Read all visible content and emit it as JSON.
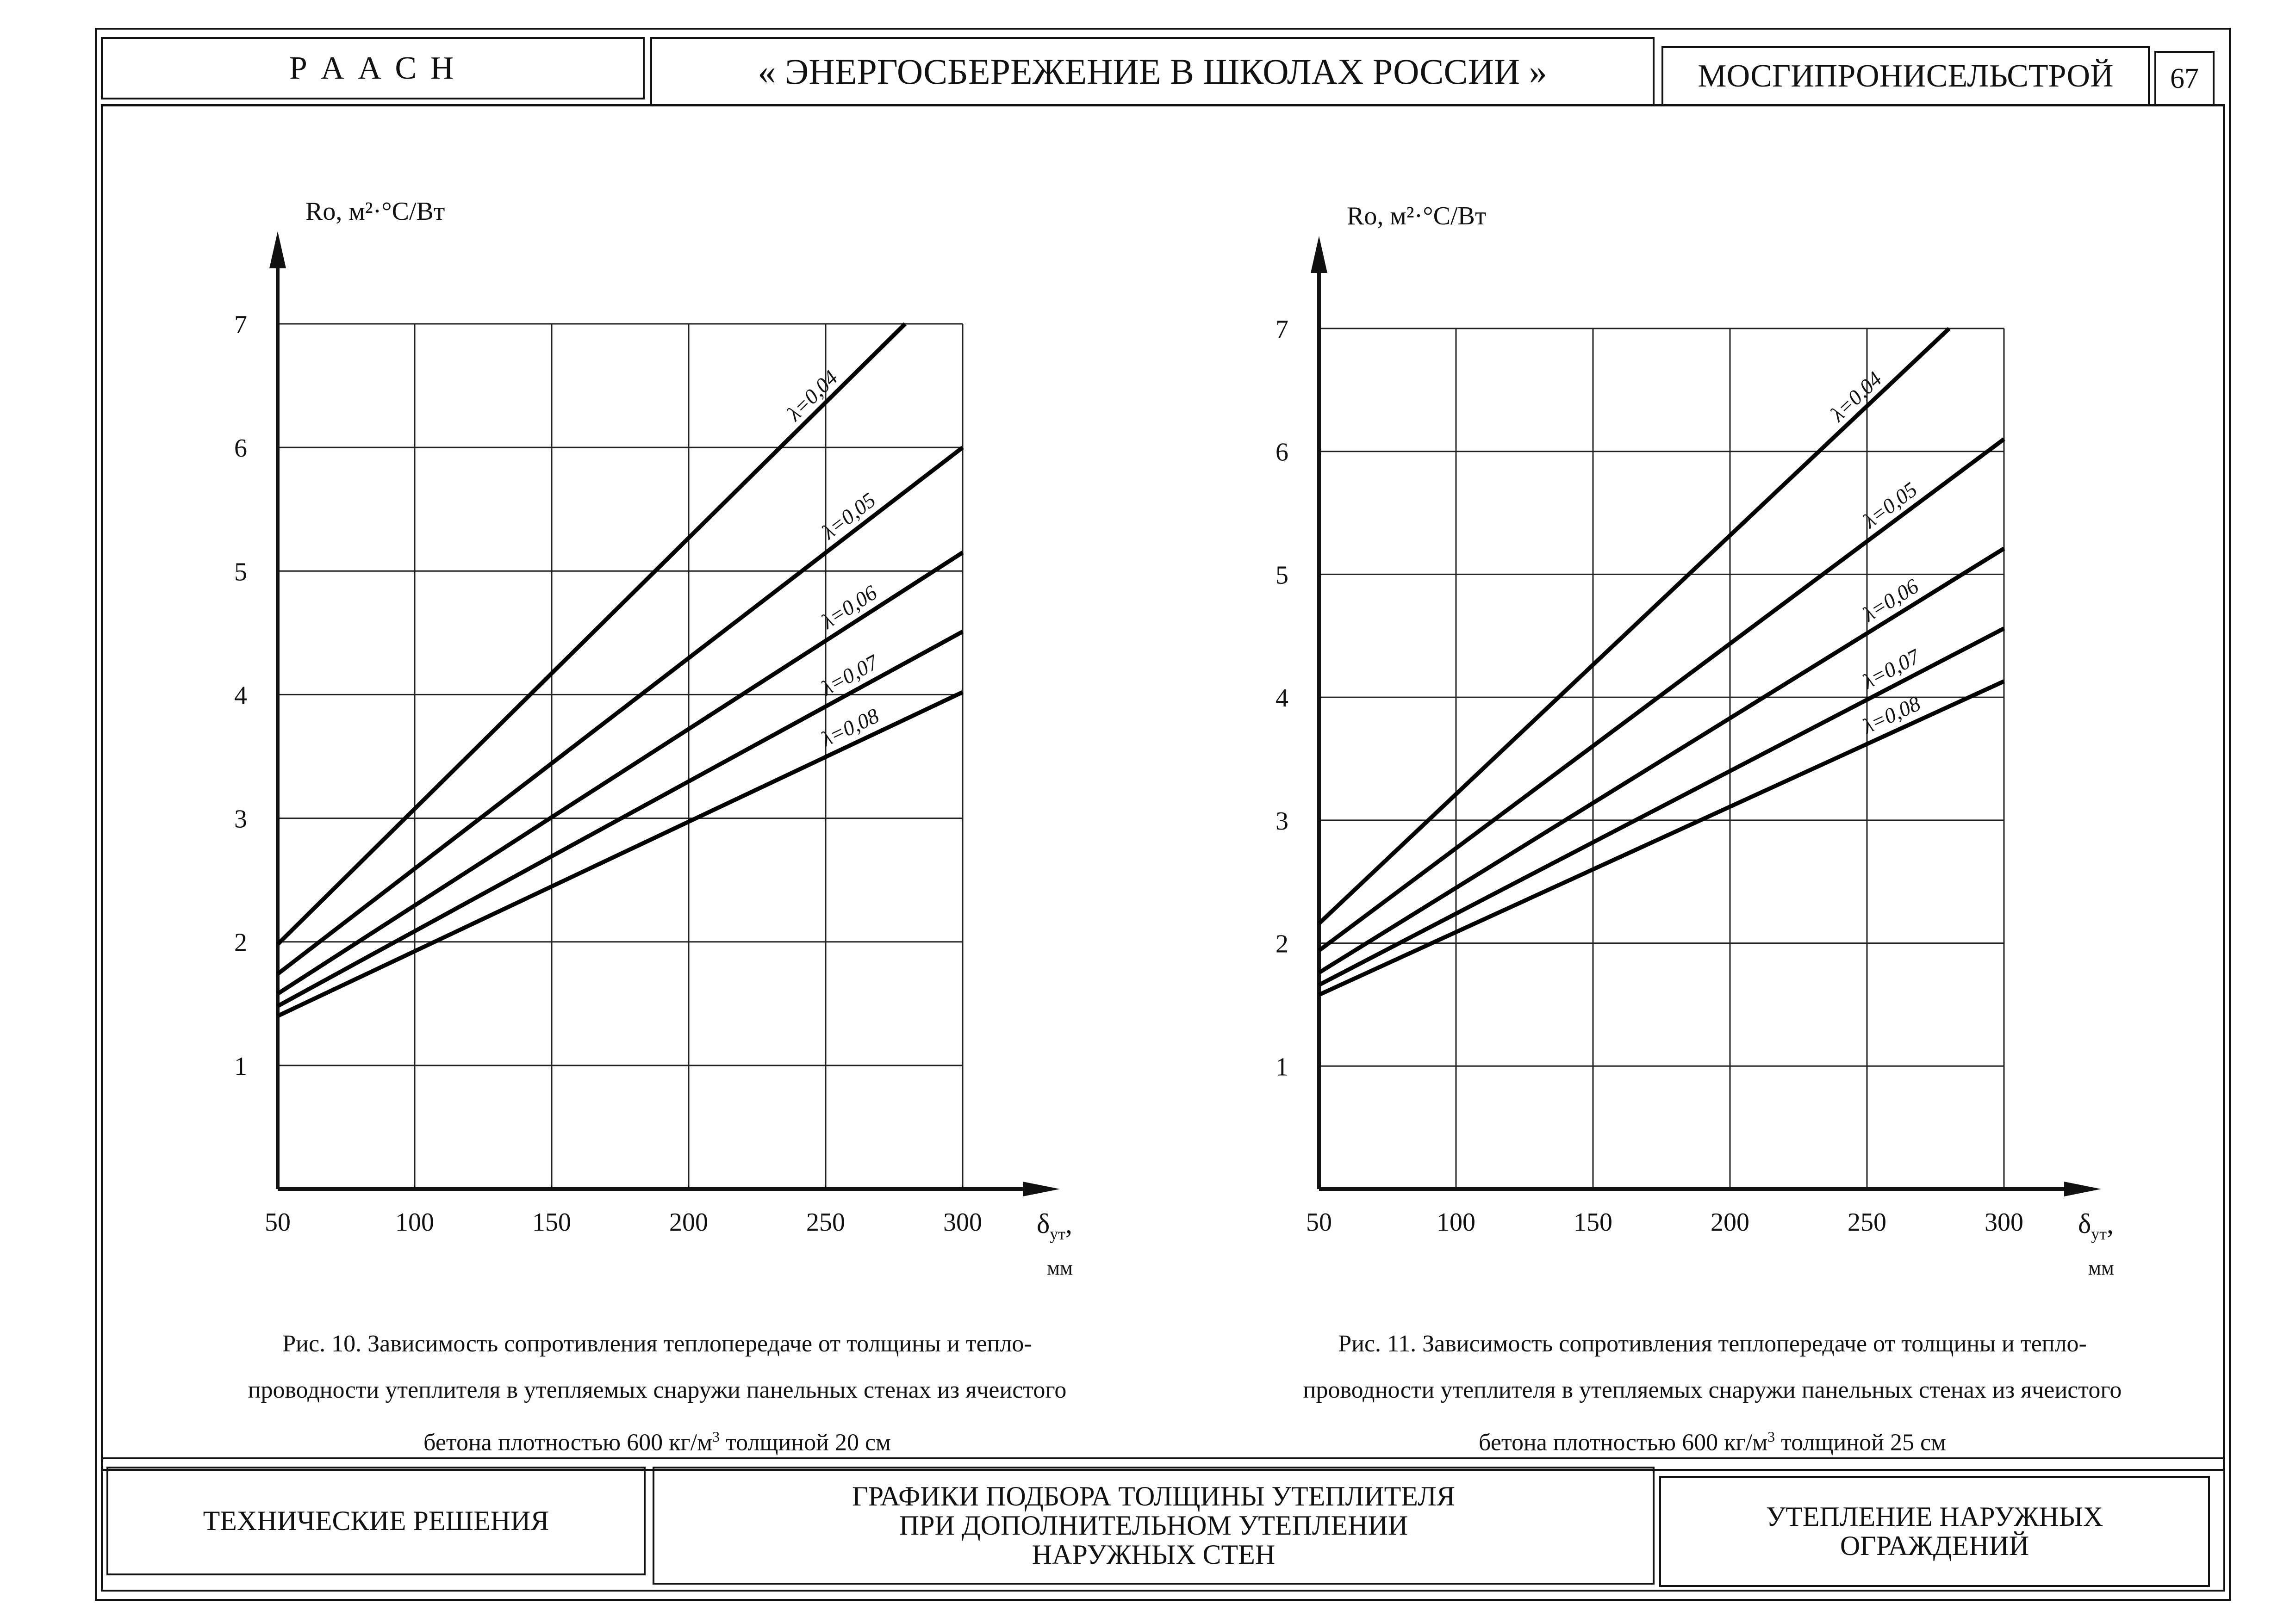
{
  "header": {
    "org": "Р А А С Н",
    "title": "« ЭНЕРГОСБЕРЕЖЕНИЕ В ШКОЛАХ РОССИИ »",
    "institute": "МОСГИПРОНИСЕЛЬСТРОЙ",
    "page_number": "67"
  },
  "footer": {
    "left": "ТЕХНИЧЕСКИЕ РЕШЕНИЯ",
    "center_lines": [
      "ГРАФИКИ ПОДБОРА ТОЛЩИНЫ УТЕПЛИТЕЛЯ",
      "ПРИ ДОПОЛНИТЕЛЬНОМ УТЕПЛЕНИИ",
      "НАРУЖНЫХ СТЕН"
    ],
    "right_lines": [
      "УТЕПЛЕНИЕ НАРУЖНЫХ",
      "ОГРАЖДЕНИЙ"
    ]
  },
  "captions": [
    {
      "line1": "Рис. 10. Зависимость сопротивления теплопередаче от толщины и тепло-",
      "line2": "проводности утеплителя в утепляемых снаружи панельных стенах из ячеистого",
      "line3_pre": "бетона плотностью 600 кг/м",
      "line3_sup": "3",
      "line3_post": " толщиной 20 см"
    },
    {
      "line1": "Рис. 11. Зависимость сопротивления теплопередаче от толщины и тепло-",
      "line2": "проводности утеплителя в утепляемых снаружи панельных стенах из ячеистого",
      "line3_pre": "бетона плотностью 600 кг/м",
      "line3_sup": "3",
      "line3_post": " толщиной 25 см"
    }
  ],
  "chart_data": [
    {
      "type": "line",
      "title": "",
      "ylabel": "Ro, м²·°С/Вт",
      "xlabel_main": "δ",
      "xlabel_sub": "ут",
      "xlabel_tail": ",",
      "xunit": "мм",
      "xlim": [
        50,
        300
      ],
      "ylim": [
        0,
        7
      ],
      "x_ticks": [
        "50",
        "100",
        "150",
        "200",
        "250",
        "300"
      ],
      "y_ticks": [
        "1",
        "2",
        "3",
        "4",
        "5",
        "6",
        "7"
      ],
      "grid": true,
      "series": [
        {
          "name": "λ=0,04",
          "x": [
            50,
            279
          ],
          "values": [
            1.98,
            7.0
          ]
        },
        {
          "name": "λ=0,05",
          "x": [
            50,
            300
          ],
          "values": [
            1.74,
            6.0
          ]
        },
        {
          "name": "λ=0,06",
          "x": [
            50,
            300
          ],
          "values": [
            1.58,
            5.15
          ]
        },
        {
          "name": "λ=0,07",
          "x": [
            50,
            300
          ],
          "values": [
            1.48,
            4.51
          ]
        },
        {
          "name": "λ=0,08",
          "x": [
            50,
            300
          ],
          "values": [
            1.4,
            4.02
          ]
        }
      ]
    },
    {
      "type": "line",
      "title": "",
      "ylabel": "Ro, м²·°С/Вт",
      "xlabel_main": "δ",
      "xlabel_sub": "ут",
      "xlabel_tail": ",",
      "xunit": "мм",
      "xlim": [
        50,
        300
      ],
      "ylim": [
        0,
        7
      ],
      "x_ticks": [
        "50",
        "100",
        "150",
        "200",
        "250",
        "300"
      ],
      "y_ticks": [
        "1",
        "2",
        "3",
        "4",
        "5",
        "6",
        "7"
      ],
      "grid": true,
      "series": [
        {
          "name": "λ=0,04",
          "x": [
            50,
            280
          ],
          "values": [
            2.16,
            7.0
          ]
        },
        {
          "name": "λ=0,05",
          "x": [
            50,
            300
          ],
          "values": [
            1.94,
            6.1
          ]
        },
        {
          "name": "λ=0,06",
          "x": [
            50,
            300
          ],
          "values": [
            1.76,
            5.21
          ]
        },
        {
          "name": "λ=0,07",
          "x": [
            50,
            300
          ],
          "values": [
            1.66,
            4.56
          ]
        },
        {
          "name": "λ=0,08",
          "x": [
            50,
            300
          ],
          "values": [
            1.58,
            4.13
          ]
        }
      ]
    }
  ]
}
